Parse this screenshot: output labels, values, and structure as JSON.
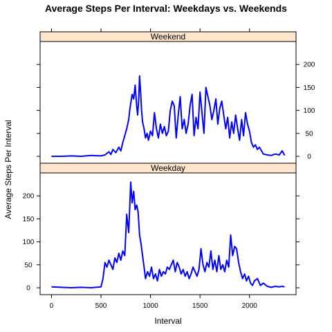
{
  "chart_data": {
    "type": "line",
    "title": "Average Steps Per Interval: Weekdays vs. Weekends",
    "xlabel": "Interval",
    "ylabel": "Average Steps Per Interval",
    "xlim": [
      -115,
      2470
    ],
    "ylim": [
      -15,
      250
    ],
    "x_ticks": [
      0,
      500,
      1000,
      1500,
      2000
    ],
    "y_ticks": [
      0,
      50,
      100,
      150,
      200
    ],
    "line_color": "#0000ff",
    "strip_color": "#ffe5cc",
    "panels": [
      {
        "name": "Weekend",
        "x": [
          0,
          100,
          200,
          300,
          400,
          500,
          540,
          580,
          600,
          620,
          650,
          680,
          700,
          720,
          740,
          760,
          780,
          790,
          800,
          815,
          830,
          845,
          860,
          870,
          880,
          890,
          900,
          910,
          920,
          935,
          950,
          965,
          980,
          1000,
          1020,
          1040,
          1060,
          1080,
          1100,
          1120,
          1140,
          1160,
          1180,
          1200,
          1220,
          1240,
          1260,
          1280,
          1300,
          1320,
          1340,
          1360,
          1380,
          1400,
          1420,
          1440,
          1460,
          1480,
          1500,
          1520,
          1540,
          1560,
          1580,
          1600,
          1620,
          1640,
          1660,
          1680,
          1700,
          1720,
          1740,
          1760,
          1780,
          1800,
          1820,
          1840,
          1860,
          1880,
          1900,
          1920,
          1940,
          1960,
          1980,
          2000,
          2020,
          2040,
          2060,
          2080,
          2100,
          2140,
          2180,
          2220,
          2260,
          2300,
          2330,
          2355
        ],
        "values": [
          0,
          0,
          1,
          0,
          2,
          1,
          3,
          10,
          4,
          15,
          8,
          20,
          12,
          30,
          45,
          60,
          80,
          100,
          115,
          135,
          125,
          155,
          110,
          90,
          120,
          175,
          140,
          100,
          75,
          60,
          40,
          50,
          35,
          55,
          45,
          95,
          60,
          40,
          70,
          50,
          65,
          45,
          55,
          100,
          120,
          110,
          40,
          90,
          130,
          60,
          80,
          50,
          70,
          110,
          135,
          45,
          85,
          60,
          140,
          95,
          50,
          150,
          130,
          110,
          80,
          100,
          125,
          70,
          105,
          120,
          90,
          60,
          85,
          40,
          75,
          50,
          90,
          60,
          35,
          80,
          45,
          95,
          70,
          55,
          30,
          20,
          25,
          15,
          20,
          5,
          3,
          2,
          5,
          3,
          12,
          2
        ]
      },
      {
        "name": "Weekday",
        "x": [
          0,
          100,
          200,
          300,
          400,
          500,
          520,
          540,
          560,
          580,
          600,
          620,
          640,
          660,
          680,
          700,
          720,
          740,
          760,
          780,
          800,
          815,
          830,
          845,
          860,
          875,
          890,
          905,
          920,
          935,
          950,
          970,
          990,
          1010,
          1030,
          1050,
          1070,
          1090,
          1110,
          1130,
          1150,
          1170,
          1190,
          1210,
          1230,
          1250,
          1270,
          1290,
          1310,
          1330,
          1350,
          1370,
          1390,
          1410,
          1430,
          1450,
          1470,
          1490,
          1510,
          1530,
          1550,
          1570,
          1590,
          1610,
          1630,
          1650,
          1670,
          1690,
          1710,
          1730,
          1750,
          1770,
          1790,
          1810,
          1830,
          1850,
          1870,
          1890,
          1910,
          1930,
          1950,
          1970,
          1990,
          2010,
          2030,
          2050,
          2080,
          2110,
          2140,
          2180,
          2220,
          2260,
          2300,
          2330,
          2355
        ],
        "values": [
          2,
          1,
          0,
          1,
          0,
          2,
          20,
          55,
          45,
          60,
          50,
          40,
          65,
          55,
          75,
          60,
          80,
          70,
          160,
          120,
          230,
          185,
          210,
          170,
          180,
          165,
          115,
          95,
          70,
          45,
          20,
          35,
          25,
          45,
          20,
          30,
          15,
          40,
          25,
          35,
          30,
          45,
          40,
          50,
          60,
          35,
          55,
          45,
          30,
          40,
          25,
          35,
          20,
          30,
          45,
          35,
          25,
          40,
          85,
          50,
          35,
          55,
          45,
          80,
          40,
          60,
          35,
          70,
          40,
          50,
          35,
          60,
          45,
          115,
          70,
          90,
          85,
          55,
          35,
          20,
          30,
          15,
          25,
          10,
          5,
          15,
          20,
          5,
          10,
          3,
          1,
          3,
          2,
          3,
          2
        ]
      }
    ]
  }
}
